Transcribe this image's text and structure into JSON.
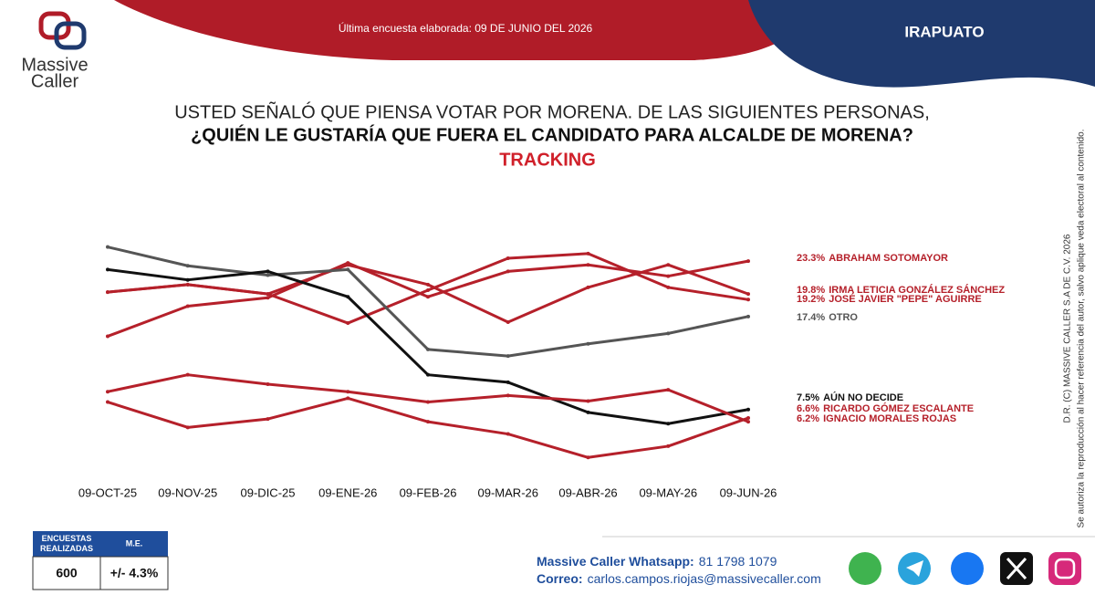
{
  "header": {
    "logo_line1": "Massive",
    "logo_line2": "Caller",
    "last_survey": "Última encuesta elaborada: 09 DE JUNIO DEL 2026",
    "city": "IRAPUATO"
  },
  "chart_data": {
    "type": "line",
    "title_lines": [
      "USTED SEÑALÓ QUE PIENSA VOTAR POR MORENA. DE LAS SIGUIENTES PERSONAS,",
      "¿QUIÉN LE GUSTARÍA QUE FUERA EL CANDIDATO PARA ALCALDE DE MORENA?"
    ],
    "subtitle": "TRACKING",
    "categories": [
      "09-OCT-25",
      "09-NOV-25",
      "09-DIC-25",
      "09-ENE-26",
      "09-FEB-26",
      "09-MAR-26",
      "09-ABR-26",
      "09-MAY-26",
      "09-JUN-26"
    ],
    "ylim": [
      0,
      27
    ],
    "series": [
      {
        "name": "ABRAHAM SOTOMAYOR",
        "color": "#b5202a",
        "values": [
          15.3,
          18.5,
          19.4,
          23.1,
          19.5,
          22.2,
          22.9,
          21.7,
          23.3
        ],
        "value_labels": [
          null,
          null,
          null,
          null,
          null,
          null,
          null,
          null,
          "23.3%"
        ]
      },
      {
        "name": "IRMA LETICIA GONZÁLEZ SÁNCHEZ",
        "color": "#b5202a",
        "values": [
          20.0,
          20.8,
          19.8,
          22.9,
          20.8,
          16.8,
          20.5,
          22.9,
          19.8
        ],
        "value_labels": [
          null,
          null,
          null,
          null,
          null,
          null,
          null,
          null,
          "19.8%"
        ]
      },
      {
        "name": "JOSÉ JAVIER \"PEPE\" AGUIRRE",
        "color": "#b5202a",
        "values": [
          20.0,
          20.8,
          19.8,
          16.7,
          20.2,
          23.6,
          24.1,
          20.5,
          19.2
        ],
        "value_labels": [
          null,
          null,
          null,
          null,
          null,
          null,
          null,
          null,
          "19.2%"
        ]
      },
      {
        "name": "OTRO",
        "color": "#555555",
        "values": [
          24.8,
          22.8,
          21.8,
          22.4,
          13.9,
          13.2,
          14.5,
          15.6,
          17.4
        ],
        "value_labels": [
          null,
          null,
          null,
          null,
          null,
          null,
          null,
          null,
          "17.4%"
        ]
      },
      {
        "name": "AÚN NO DECIDE",
        "color": "#111111",
        "values": [
          22.4,
          21.3,
          22.2,
          19.5,
          11.2,
          10.4,
          7.2,
          6.0,
          7.5
        ],
        "value_labels": [
          null,
          null,
          null,
          null,
          null,
          null,
          null,
          null,
          "7.5%"
        ]
      },
      {
        "name": "RICARDO GÓMEZ ESCALANTE",
        "color": "#b5202a",
        "values": [
          8.3,
          5.6,
          6.5,
          8.7,
          6.2,
          4.9,
          2.4,
          3.6,
          6.6
        ],
        "value_labels": [
          null,
          null,
          null,
          null,
          null,
          null,
          null,
          null,
          "6.6%"
        ]
      },
      {
        "name": "IGNACIO MORALES ROJAS",
        "color": "#b5202a",
        "values": [
          9.4,
          11.2,
          10.2,
          9.4,
          8.3,
          9.0,
          8.4,
          9.6,
          6.2
        ],
        "value_labels": [
          null,
          null,
          null,
          null,
          null,
          null,
          null,
          null,
          "6.2%"
        ]
      }
    ]
  },
  "side": {
    "copyright": "D.R. (C) MASSIVE CALLER S.A DE C.V. 2026",
    "notice": "Se autoriza la reproducción al hacer referencia del autor, salvo aplique veda electoral al contenido."
  },
  "table": {
    "headers": [
      "ENCUESTAS REALIZADAS",
      "M.E."
    ],
    "rows": [
      [
        "600",
        "+/- 4.3%"
      ]
    ]
  },
  "footer": {
    "whatsapp_label": "Massive Caller Whatsapp:",
    "whatsapp_number": "81 1798 1079",
    "email_label": "Correo:",
    "email": "carlos.campos.riojas@massivecaller.com"
  }
}
